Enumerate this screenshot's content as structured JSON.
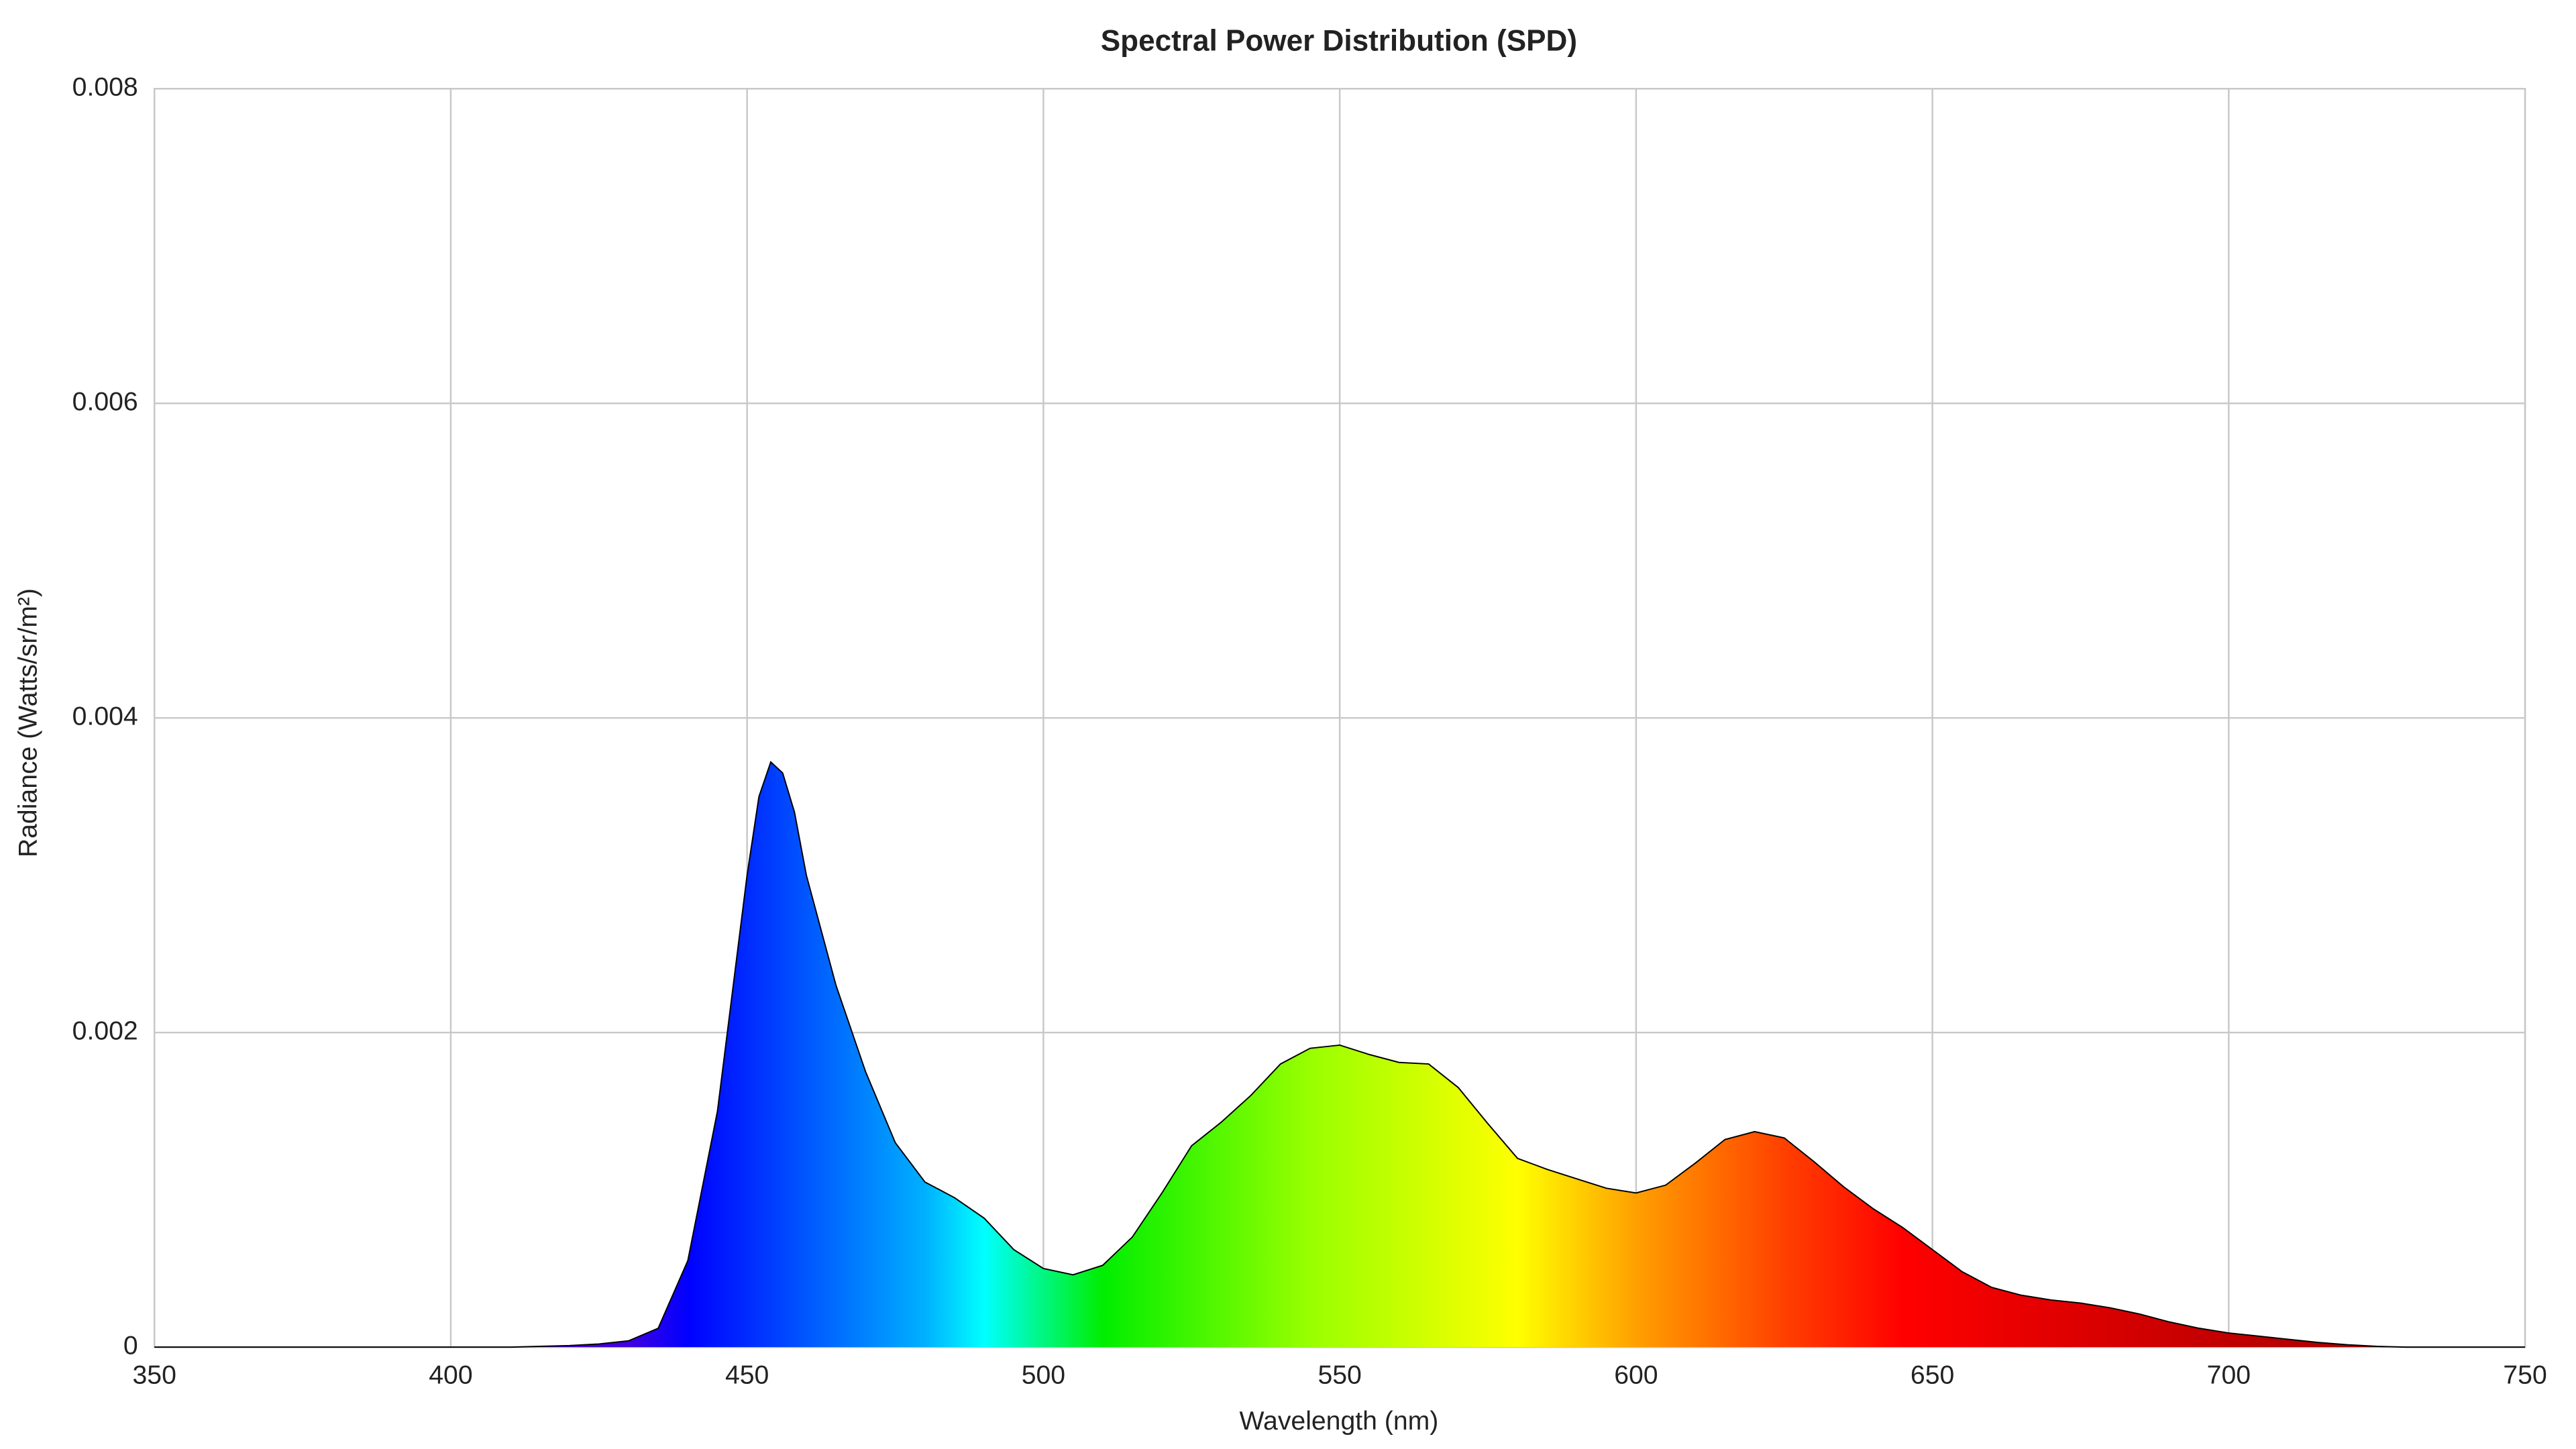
{
  "chart_data": {
    "type": "area",
    "title": "Spectral Power Distribution (SPD)",
    "x_label": "Wavelength (nm)",
    "y_label": "Radiance (Watts/sr/m²)",
    "x": [
      350,
      355,
      360,
      365,
      370,
      375,
      380,
      385,
      390,
      395,
      400,
      405,
      410,
      415,
      420,
      425,
      430,
      435,
      440,
      445,
      450,
      452,
      454,
      456,
      458,
      460,
      465,
      470,
      475,
      480,
      485,
      490,
      495,
      500,
      505,
      510,
      515,
      520,
      525,
      530,
      535,
      540,
      545,
      550,
      555,
      560,
      565,
      570,
      575,
      580,
      585,
      590,
      595,
      600,
      605,
      610,
      615,
      620,
      625,
      630,
      635,
      640,
      645,
      650,
      655,
      660,
      665,
      670,
      675,
      680,
      685,
      690,
      695,
      700,
      705,
      710,
      715,
      720,
      725,
      730,
      735,
      740,
      745,
      750
    ],
    "values": [
      0,
      0,
      0,
      0,
      0,
      0,
      0,
      0,
      0,
      0,
      0,
      0,
      0,
      5e-06,
      1e-05,
      2e-05,
      4e-05,
      0.00012,
      0.00055,
      0.0015,
      0.003,
      0.0035,
      0.00372,
      0.00365,
      0.0034,
      0.003,
      0.0023,
      0.00175,
      0.0013,
      0.00105,
      0.00095,
      0.00082,
      0.00062,
      0.0005,
      0.00046,
      0.00052,
      0.0007,
      0.00098,
      0.00128,
      0.00143,
      0.0016,
      0.0018,
      0.0019,
      0.00192,
      0.00186,
      0.00181,
      0.0018,
      0.00165,
      0.00142,
      0.0012,
      0.00113,
      0.00107,
      0.00101,
      0.00098,
      0.00103,
      0.00117,
      0.00132,
      0.00137,
      0.00133,
      0.00118,
      0.00102,
      0.00088,
      0.00076,
      0.00062,
      0.00048,
      0.00038,
      0.00033,
      0.0003,
      0.00028,
      0.00025,
      0.00021,
      0.00016,
      0.00012,
      9e-05,
      7e-05,
      5e-05,
      3e-05,
      1.5e-05,
      5e-06,
      0,
      0,
      0,
      0,
      0
    ],
    "line_color": "#000000",
    "xlim": [
      350,
      750
    ],
    "xticks": [
      350,
      400,
      450,
      500,
      550,
      600,
      650,
      700,
      750
    ],
    "ylim": [
      0,
      0.008
    ],
    "yticks": [
      0,
      0.002,
      0.004,
      0.006,
      0.008
    ],
    "grid": true
  }
}
